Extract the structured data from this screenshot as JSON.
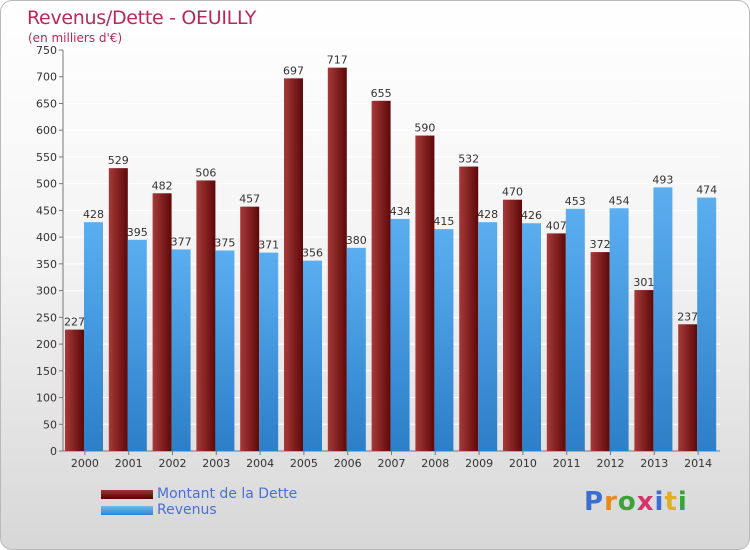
{
  "header": {
    "title": "Revenus/Dette - OEUILLY",
    "subtitle": "(en milliers d'€)"
  },
  "legend": {
    "debt_label": "Montant de la Dette",
    "revenue_label": "Revenus"
  },
  "logo": {
    "text": "Proxiti",
    "letter_colors": [
      "#3a6fd0",
      "#e88a1a",
      "#3aa43a",
      "#d6336c",
      "#3a6fd0",
      "#e0b020",
      "#3aa43a"
    ]
  },
  "colors": {
    "debt": "#7a1414",
    "revenue": "#3c9be4",
    "title": "#b8295a"
  },
  "chart_data": {
    "type": "bar",
    "title": "Revenus/Dette - OEUILLY",
    "subtitle": "(en milliers d'€)",
    "categories": [
      "2000",
      "2001",
      "2002",
      "2003",
      "2004",
      "2005",
      "2006",
      "2007",
      "2008",
      "2009",
      "2010",
      "2011",
      "2012",
      "2013",
      "2014"
    ],
    "series": [
      {
        "name": "Montant de la Dette",
        "values": [
          227,
          529,
          482,
          506,
          457,
          697,
          717,
          655,
          590,
          532,
          470,
          407,
          372,
          301,
          237
        ]
      },
      {
        "name": "Revenus",
        "values": [
          428,
          395,
          377,
          375,
          371,
          356,
          380,
          434,
          415,
          428,
          426,
          453,
          454,
          493,
          474
        ]
      }
    ],
    "ylim": [
      0,
      750
    ],
    "yticks": [
      0,
      50,
      100,
      150,
      200,
      250,
      300,
      350,
      400,
      450,
      500,
      550,
      600,
      650,
      700,
      750
    ],
    "grid": true,
    "legend_position": "bottom-left"
  }
}
